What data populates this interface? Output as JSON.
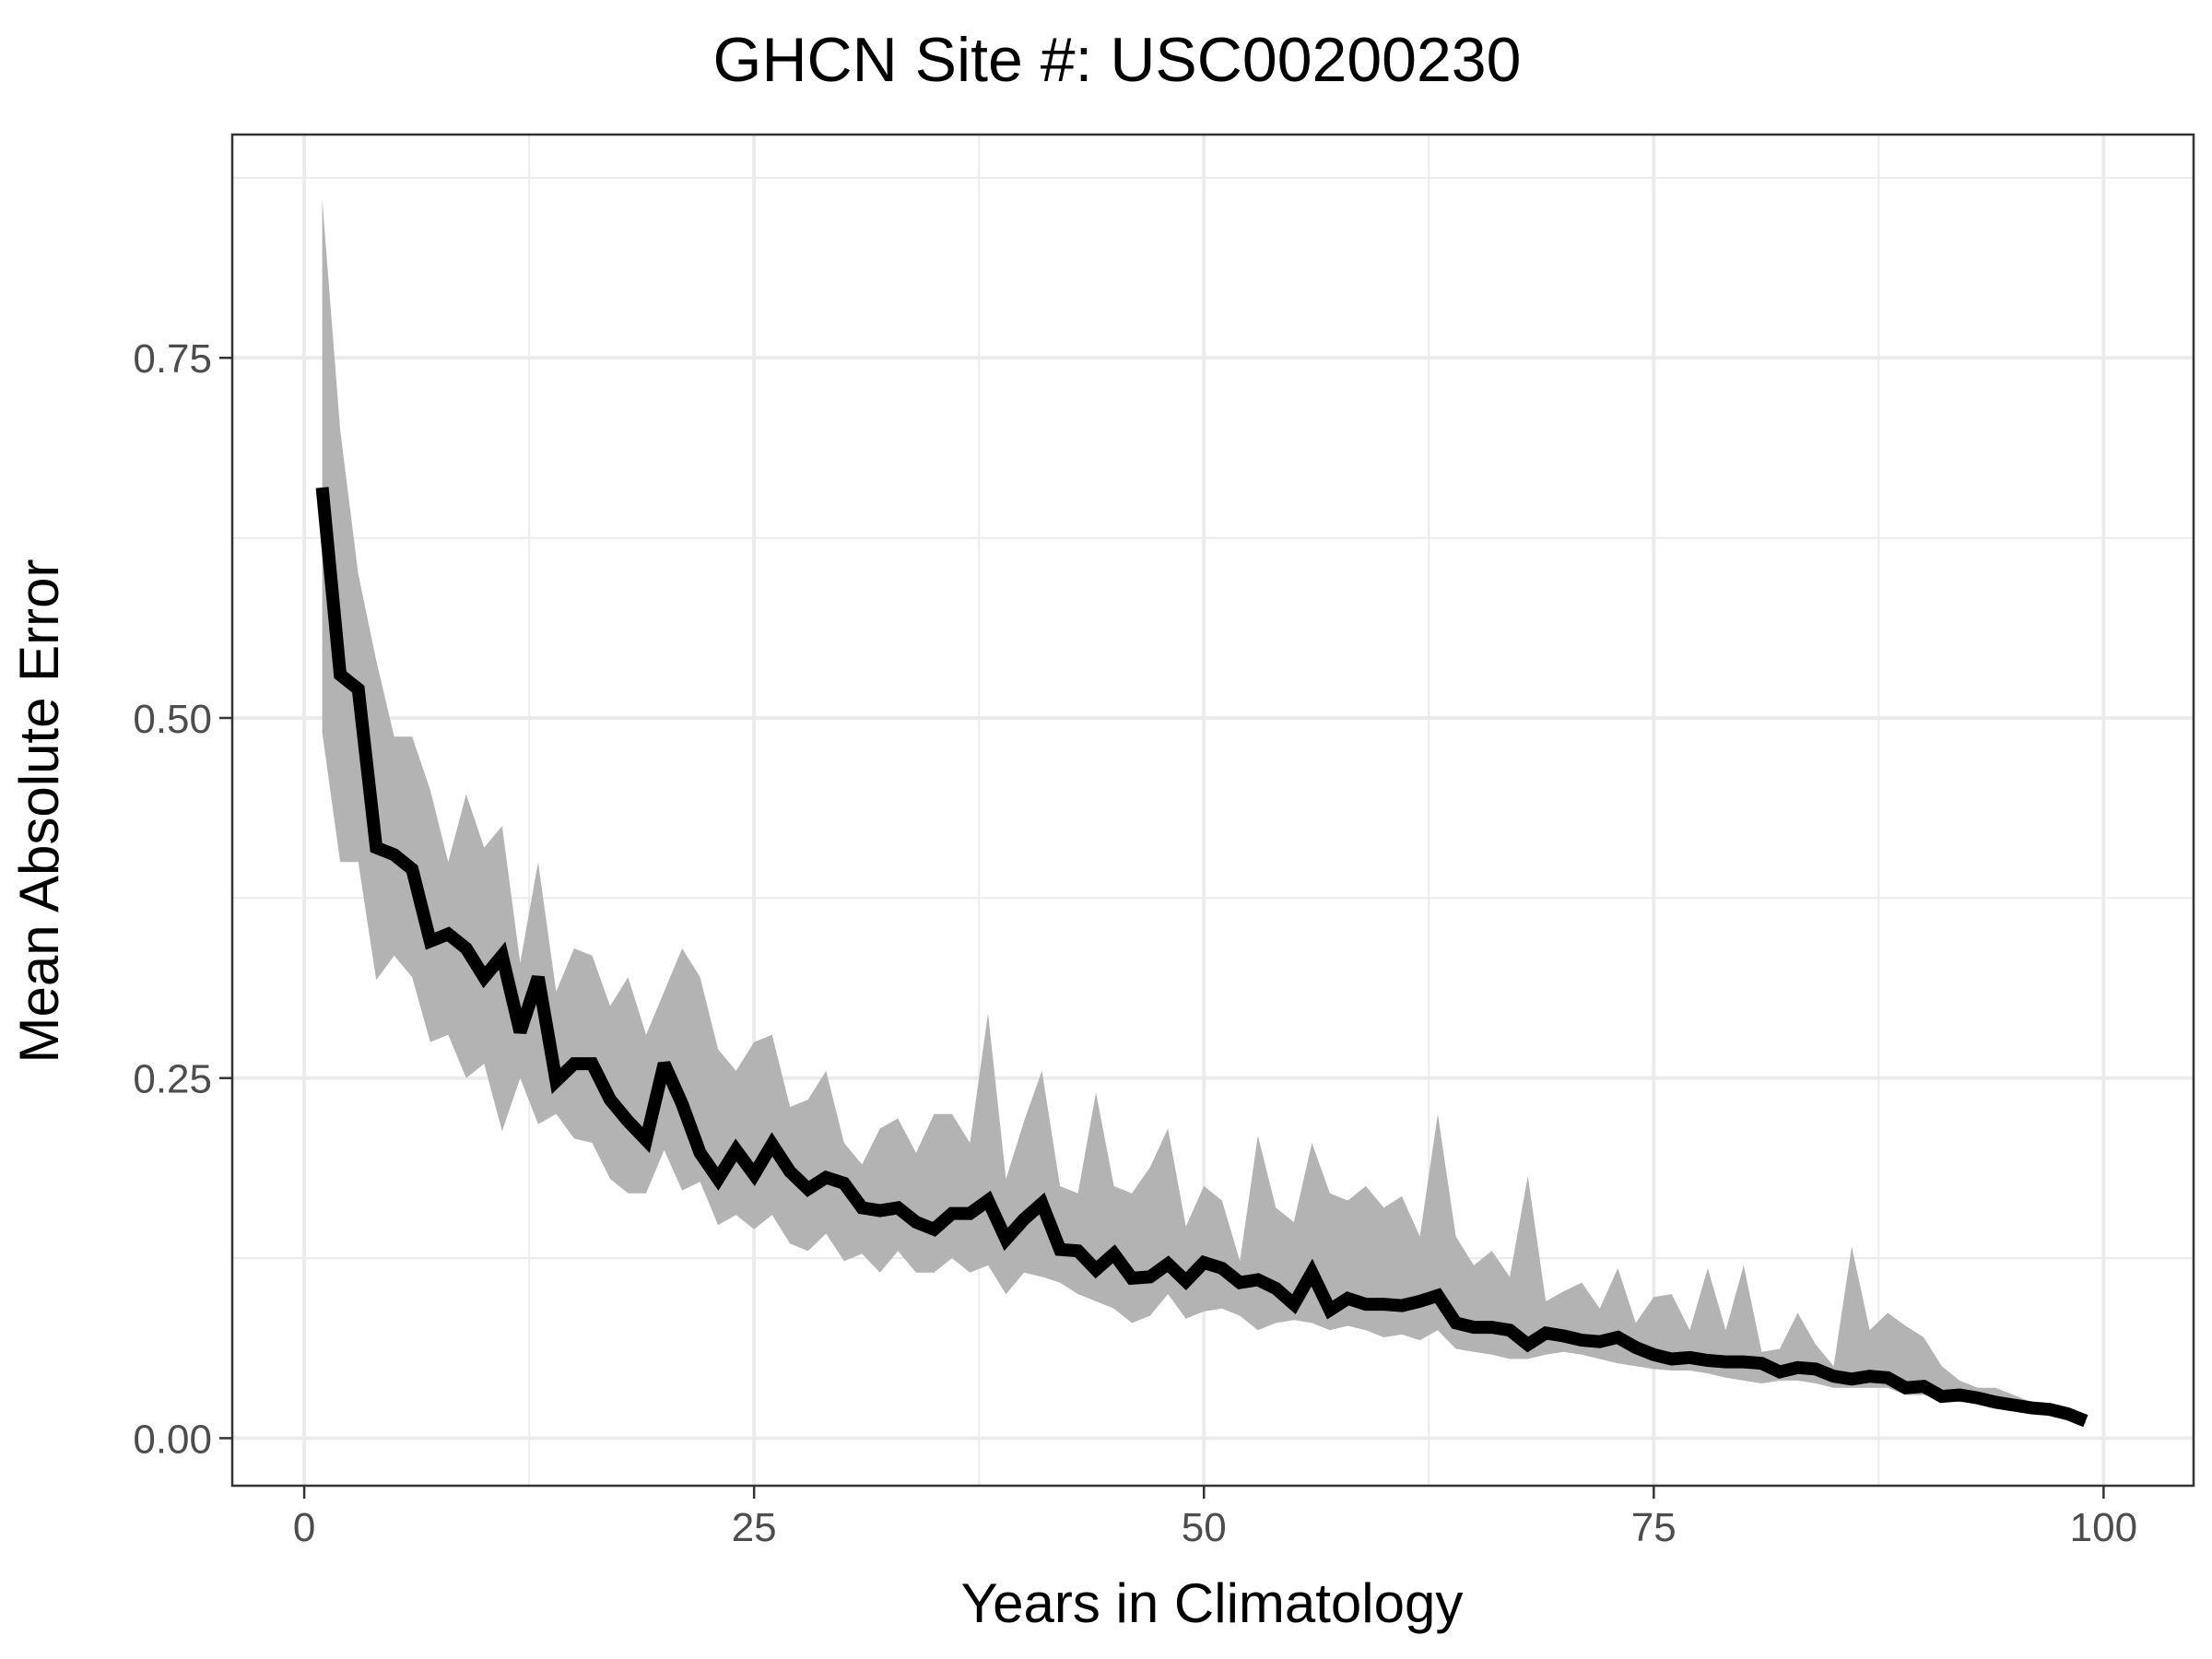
{
  "chart_data": {
    "type": "line",
    "title": "GHCN Site #: USC00200230",
    "xlabel": "Years in Climatology",
    "ylabel": "Mean Absolute Error",
    "xlim": [
      -4,
      105
    ],
    "ylim": [
      -0.033,
      0.905
    ],
    "x_ticks": [
      0,
      25,
      50,
      75,
      100
    ],
    "x_tick_labels": [
      "0",
      "25",
      "50",
      "75",
      "100"
    ],
    "y_ticks": [
      0,
      0.25,
      0.5,
      0.75
    ],
    "y_tick_labels": [
      "0.00",
      "0.25",
      "0.50",
      "0.75"
    ],
    "grid": true,
    "legend": "none",
    "colors": {
      "line": "#000000",
      "band": "#b3b3b3",
      "grid": "#ebebeb",
      "panel_border": "#333333"
    },
    "series": [
      {
        "type": "line",
        "x": [
          1,
          2,
          3,
          4,
          5,
          6,
          7,
          8,
          9,
          10,
          11,
          12,
          13,
          14,
          15,
          16,
          17,
          18,
          19,
          20,
          21,
          22,
          23,
          24,
          25,
          26,
          27,
          28,
          29,
          30,
          31,
          32,
          33,
          34,
          35,
          36,
          37,
          38,
          39,
          40,
          41,
          42,
          43,
          44,
          45,
          46,
          47,
          48,
          49,
          50,
          51,
          52,
          53,
          54,
          55,
          56,
          57,
          58,
          59,
          60,
          61,
          62,
          63,
          64,
          65,
          66,
          67,
          68,
          69,
          70,
          71,
          72,
          73,
          74,
          75,
          76,
          77,
          78,
          79,
          80,
          81,
          82,
          83,
          84,
          85,
          86,
          87,
          88,
          89,
          90,
          91,
          92,
          93,
          94,
          95,
          96,
          97,
          98,
          99
        ],
        "y": [
          0.66,
          0.53,
          0.52,
          0.41,
          0.405,
          0.395,
          0.345,
          0.35,
          0.34,
          0.32,
          0.335,
          0.282,
          0.32,
          0.248,
          0.26,
          0.26,
          0.235,
          0.22,
          0.207,
          0.26,
          0.232,
          0.198,
          0.18,
          0.2,
          0.183,
          0.204,
          0.185,
          0.173,
          0.181,
          0.177,
          0.16,
          0.158,
          0.16,
          0.15,
          0.145,
          0.156,
          0.156,
          0.165,
          0.138,
          0.152,
          0.163,
          0.131,
          0.13,
          0.117,
          0.128,
          0.111,
          0.112,
          0.121,
          0.109,
          0.122,
          0.118,
          0.108,
          0.11,
          0.104,
          0.093,
          0.115,
          0.089,
          0.097,
          0.093,
          0.093,
          0.092,
          0.095,
          0.099,
          0.08,
          0.077,
          0.077,
          0.075,
          0.065,
          0.073,
          0.071,
          0.068,
          0.067,
          0.07,
          0.063,
          0.058,
          0.055,
          0.056,
          0.054,
          0.053,
          0.053,
          0.052,
          0.046,
          0.049,
          0.048,
          0.043,
          0.041,
          0.043,
          0.042,
          0.035,
          0.036,
          0.029,
          0.03,
          0.028,
          0.025,
          0.023,
          0.021,
          0.02,
          0.017,
          0.012
        ]
      },
      {
        "type": "band",
        "x": [
          1,
          2,
          3,
          4,
          5,
          6,
          7,
          8,
          9,
          10,
          11,
          12,
          13,
          14,
          15,
          16,
          17,
          18,
          19,
          20,
          21,
          22,
          23,
          24,
          25,
          26,
          27,
          28,
          29,
          30,
          31,
          32,
          33,
          34,
          35,
          36,
          37,
          38,
          39,
          40,
          41,
          42,
          43,
          44,
          45,
          46,
          47,
          48,
          49,
          50,
          51,
          52,
          53,
          54,
          55,
          56,
          57,
          58,
          59,
          60,
          61,
          62,
          63,
          64,
          65,
          66,
          67,
          68,
          69,
          70,
          71,
          72,
          73,
          74,
          75,
          76,
          77,
          78,
          79,
          80,
          81,
          82,
          83,
          84,
          85,
          86,
          87,
          88,
          89,
          90,
          91,
          92,
          93,
          94,
          95,
          96,
          97,
          98,
          99
        ],
        "upper": [
          0.86,
          0.7,
          0.6,
          0.54,
          0.487,
          0.487,
          0.45,
          0.4,
          0.447,
          0.41,
          0.425,
          0.33,
          0.4,
          0.31,
          0.34,
          0.335,
          0.3,
          0.32,
          0.28,
          0.31,
          0.34,
          0.32,
          0.27,
          0.255,
          0.275,
          0.28,
          0.23,
          0.235,
          0.255,
          0.205,
          0.19,
          0.215,
          0.222,
          0.198,
          0.225,
          0.225,
          0.205,
          0.295,
          0.18,
          0.22,
          0.255,
          0.175,
          0.17,
          0.24,
          0.175,
          0.17,
          0.188,
          0.215,
          0.147,
          0.175,
          0.165,
          0.123,
          0.21,
          0.16,
          0.15,
          0.205,
          0.17,
          0.165,
          0.175,
          0.16,
          0.168,
          0.14,
          0.225,
          0.14,
          0.12,
          0.13,
          0.112,
          0.182,
          0.095,
          0.102,
          0.108,
          0.09,
          0.118,
          0.08,
          0.098,
          0.1,
          0.075,
          0.118,
          0.075,
          0.12,
          0.06,
          0.062,
          0.087,
          0.065,
          0.05,
          0.133,
          0.075,
          0.087,
          0.078,
          0.07,
          0.05,
          0.04,
          0.035,
          0.035,
          0.03,
          0.025,
          0.022,
          0.018,
          0.013
        ],
        "lower": [
          0.49,
          0.4,
          0.4,
          0.318,
          0.335,
          0.32,
          0.275,
          0.28,
          0.25,
          0.26,
          0.213,
          0.25,
          0.218,
          0.225,
          0.208,
          0.205,
          0.18,
          0.17,
          0.17,
          0.2,
          0.172,
          0.178,
          0.148,
          0.155,
          0.145,
          0.155,
          0.135,
          0.13,
          0.142,
          0.123,
          0.128,
          0.115,
          0.13,
          0.115,
          0.115,
          0.125,
          0.115,
          0.12,
          0.1,
          0.115,
          0.112,
          0.108,
          0.1,
          0.095,
          0.09,
          0.08,
          0.085,
          0.1,
          0.083,
          0.088,
          0.09,
          0.085,
          0.075,
          0.08,
          0.082,
          0.08,
          0.075,
          0.078,
          0.075,
          0.07,
          0.072,
          0.068,
          0.075,
          0.062,
          0.06,
          0.058,
          0.055,
          0.055,
          0.058,
          0.06,
          0.058,
          0.055,
          0.052,
          0.05,
          0.048,
          0.047,
          0.047,
          0.045,
          0.042,
          0.04,
          0.038,
          0.04,
          0.04,
          0.038,
          0.035,
          0.035,
          0.035,
          0.035,
          0.03,
          0.03,
          0.027,
          0.025,
          0.025,
          0.022,
          0.02,
          0.02,
          0.018,
          0.015,
          0.01
        ]
      }
    ]
  }
}
